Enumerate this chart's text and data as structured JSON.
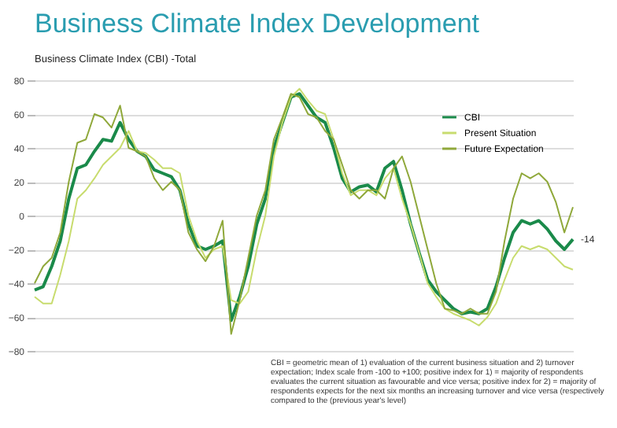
{
  "chart_data": {
    "type": "line",
    "title": "Business Climate Index Development",
    "subtitle": "Business Climate Index (CBI) -Total",
    "categories": [
      null,
      null,
      null,
      null,
      null,
      null,
      null,
      null,
      null,
      null,
      null,
      null,
      null,
      null,
      null,
      null,
      null,
      null,
      null,
      null,
      null,
      null,
      null,
      null,
      null,
      null,
      null,
      null,
      null,
      null,
      null,
      null,
      null,
      null,
      null,
      null,
      null,
      null,
      null,
      null,
      null,
      null,
      null,
      null,
      null,
      null,
      null,
      null,
      null,
      null,
      null,
      null,
      null,
      null,
      null,
      null,
      null,
      null,
      null,
      null,
      null,
      null,
      null,
      null
    ],
    "series": [
      {
        "name": "CBI",
        "color": "#1a8a4a",
        "values": [
          -44,
          -42,
          -30,
          -15,
          10,
          28,
          30,
          38,
          45,
          44,
          55,
          45,
          38,
          35,
          27,
          25,
          23,
          15,
          -5,
          -18,
          -20,
          -18,
          -15,
          -62,
          -48,
          -30,
          -5,
          10,
          40,
          55,
          70,
          72,
          65,
          58,
          55,
          40,
          22,
          14,
          17,
          18,
          14,
          28,
          32,
          15,
          -5,
          -22,
          -38,
          -45,
          -50,
          -55,
          -58,
          -57,
          -58,
          -55,
          -42,
          -25,
          -10,
          -3,
          -5,
          -3,
          -8,
          -15,
          -20,
          -14
        ],
        "value_labels": [
          null,
          null,
          null,
          null,
          null,
          null,
          null,
          null,
          null,
          null,
          null,
          null,
          null,
          null,
          null,
          null,
          null,
          null,
          null,
          null,
          null,
          null,
          null,
          null,
          null,
          null,
          null,
          null,
          null,
          null,
          null,
          null,
          null,
          null,
          null,
          null,
          null,
          null,
          null,
          null,
          null,
          null,
          null,
          null,
          null,
          null,
          null,
          null,
          null,
          null,
          null,
          null,
          null,
          null,
          null,
          null,
          null,
          null,
          null,
          null,
          null,
          null,
          null,
          "-14"
        ]
      },
      {
        "name": "Present Situation",
        "color": "#c8dc6e",
        "values": [
          -48,
          -52,
          -52,
          -35,
          -15,
          10,
          15,
          22,
          30,
          35,
          40,
          50,
          38,
          37,
          33,
          28,
          28,
          25,
          0,
          -15,
          -25,
          -20,
          -18,
          -50,
          -52,
          -45,
          -20,
          0,
          35,
          55,
          70,
          75,
          68,
          62,
          60,
          45,
          25,
          12,
          15,
          15,
          12,
          22,
          28,
          10,
          -5,
          -22,
          -40,
          -48,
          -55,
          -58,
          -60,
          -62,
          -65,
          -60,
          -52,
          -38,
          -25,
          -18,
          -20,
          -18,
          -20,
          -25,
          -30,
          -32
        ]
      },
      {
        "name": "Future Expectation",
        "color": "#8fa83a",
        "values": [
          -40,
          -30,
          -25,
          -10,
          20,
          43,
          45,
          60,
          58,
          52,
          65,
          40,
          38,
          35,
          22,
          15,
          20,
          15,
          -10,
          -20,
          -27,
          -18,
          -3,
          -70,
          -50,
          -25,
          0,
          15,
          45,
          58,
          72,
          70,
          60,
          58,
          50,
          45,
          30,
          15,
          10,
          15,
          15,
          10,
          28,
          35,
          20,
          0,
          -20,
          -40,
          -55,
          -56,
          -58,
          -55,
          -58,
          -58,
          -45,
          -15,
          10,
          25,
          22,
          25,
          20,
          8,
          -10,
          5
        ]
      }
    ],
    "ylim": [
      -80,
      80
    ],
    "yticks": [
      -80,
      -60,
      -40,
      -20,
      0,
      20,
      40,
      60,
      80
    ],
    "grid": "y",
    "legend": "top right",
    "tick_labels": "y",
    "annotations": [
      "CBI = geometric mean of 1) evaluation of the current business situation and 2) turnover expectation; Index scale from -100 to +100; positive index for 1) = majority of respondents evaluates the current situation as favourable and vice versa; positive index for 2) = majority of respondents expects for the next six months an increasing turnover and vice versa (respectively compared to the (previous year's level)"
    ]
  }
}
